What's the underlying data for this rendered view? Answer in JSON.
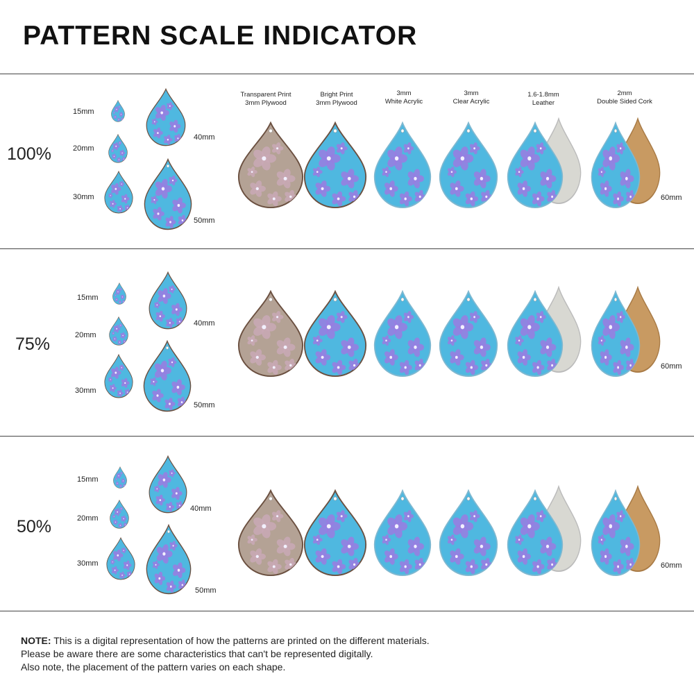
{
  "title": "PATTERN SCALE INDICATOR",
  "materials": [
    {
      "line1": "Transparent Print",
      "line2": "3mm Plywood"
    },
    {
      "line1": "Bright Print",
      "line2": "3mm Plywood"
    },
    {
      "line1": "3mm",
      "line2": "White Acrylic"
    },
    {
      "line1": "3mm",
      "line2": "Clear Acrylic"
    },
    {
      "line1": "1.6-1.8mm",
      "line2": "Leather"
    },
    {
      "line1": "2mm",
      "line2": "Double Sided Cork"
    }
  ],
  "rows": [
    {
      "scale": "100%",
      "sizes": [
        "15mm",
        "20mm",
        "30mm",
        "40mm",
        "50mm"
      ],
      "material_size": "60mm"
    },
    {
      "scale": "75%",
      "sizes": [
        "15mm",
        "20mm",
        "30mm",
        "40mm",
        "50mm"
      ],
      "material_size": "60mm"
    },
    {
      "scale": "50%",
      "sizes": [
        "15mm",
        "20mm",
        "30mm",
        "40mm",
        "50mm"
      ],
      "material_size": "60mm"
    }
  ],
  "note": {
    "label": "NOTE:",
    "line1": " This is a digital representation of how the patterns are printed on the different materials.",
    "line2": "Please be aware there are some characteristics that can't be represented digitally.",
    "line3": "Also note, the placement of the pattern varies on each shape."
  },
  "colors": {
    "blue": "#4fb8e0",
    "purple": "#9a7be0",
    "plywood": "#b4a295",
    "leather": "#d8d8d2",
    "cork": "#c89a62"
  }
}
